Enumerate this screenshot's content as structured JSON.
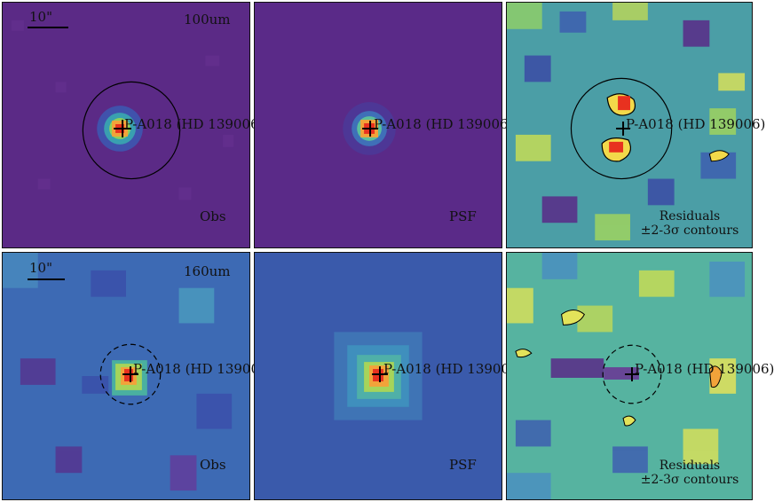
{
  "rows": [
    {
      "band": "100um",
      "scalebar_label": "10\"",
      "target_label": "P-A018 (HD 139006)",
      "panels": [
        {
          "label": "Obs",
          "bg": "#5b2a86"
        },
        {
          "label": "PSF",
          "bg": "#5a2a88"
        },
        {
          "label_line1": "Residuals",
          "label_line2": "±2-3σ contours",
          "bg": "#4b9ea6"
        }
      ]
    },
    {
      "band": "160um",
      "scalebar_label": "10\"",
      "target_label": "P-A018 (HD 139006)",
      "panels": [
        {
          "label": "Obs",
          "bg": "#3d6ab4"
        },
        {
          "label": "PSF",
          "bg": "#3a5aab"
        },
        {
          "label_line1": "Residuals",
          "label_line2": "±2-3σ contours",
          "bg": "#56b3a0"
        }
      ]
    }
  ],
  "colors": {
    "border": "#111111",
    "peak": "#e8311f",
    "mid": "#f2a33a",
    "low": "#8fd15a"
  }
}
